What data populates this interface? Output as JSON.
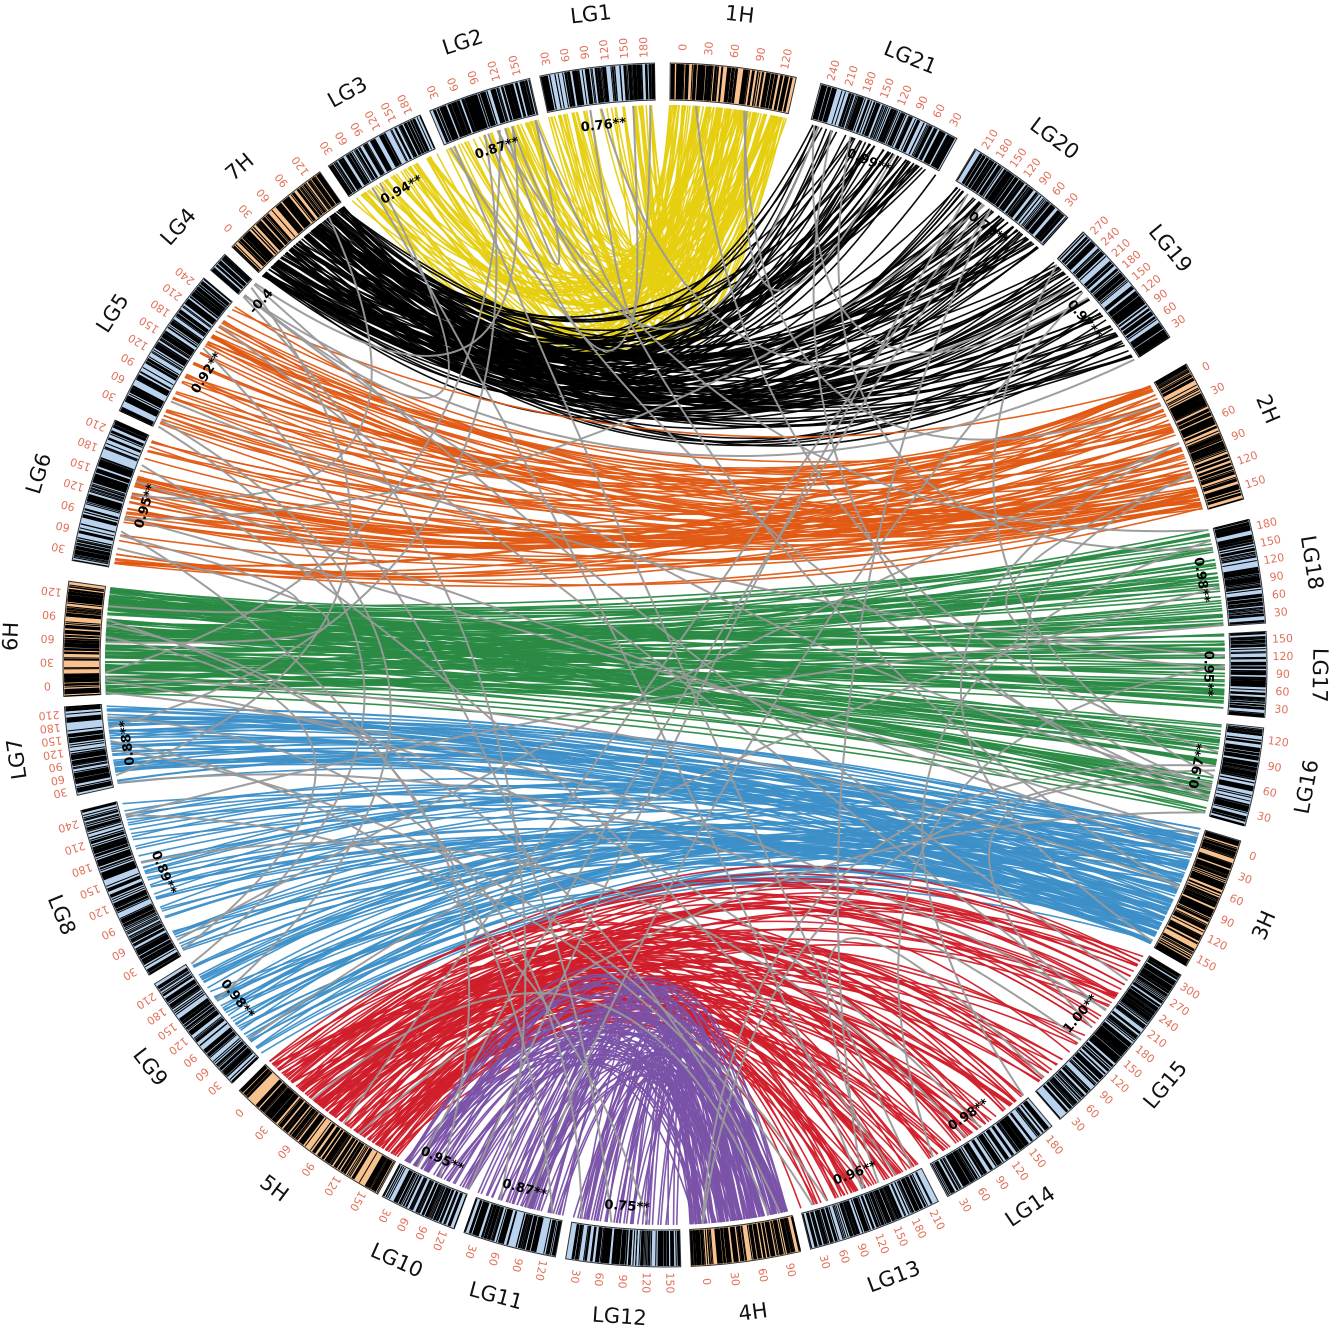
{
  "segments": [
    {
      "label": "1H",
      "ticks": [
        0,
        30,
        60,
        90,
        120
      ]
    },
    {
      "label": "LG21",
      "ticks": [
        240,
        210,
        180,
        150,
        120,
        90,
        60,
        30
      ],
      "r": "0.99**"
    },
    {
      "label": "LG20",
      "ticks": [
        210,
        180,
        150,
        120,
        90,
        60,
        30
      ],
      "r": "0.79**"
    },
    {
      "label": "LG19",
      "ticks": [
        270,
        240,
        210,
        180,
        150,
        120,
        90,
        60,
        30
      ],
      "r": "0.97**"
    },
    {
      "label": "2H",
      "ticks": [
        0,
        30,
        60,
        90,
        120,
        150
      ]
    },
    {
      "label": "LG18",
      "ticks": [
        180,
        150,
        120,
        90,
        60,
        30
      ],
      "r": "0.98**"
    },
    {
      "label": "LG17",
      "ticks": [
        150,
        120,
        90,
        60,
        30
      ],
      "r": "0.95**"
    },
    {
      "label": "LG16",
      "ticks": [
        120,
        90,
        60,
        30
      ],
      "r": "0.97**"
    },
    {
      "label": "3H",
      "ticks": [
        0,
        30,
        60,
        90,
        120,
        150
      ]
    },
    {
      "label": "LG15",
      "ticks": [
        300,
        270,
        240,
        210,
        180,
        150,
        120,
        90,
        60,
        30
      ],
      "r": "1.00**"
    },
    {
      "label": "LG14",
      "ticks": [
        180,
        150,
        120,
        90,
        60,
        30
      ],
      "r": "0.98**"
    },
    {
      "label": "LG13",
      "ticks": [
        210,
        180,
        150,
        120,
        90,
        60,
        30
      ],
      "r": "0.96**"
    },
    {
      "label": "4H",
      "ticks": [
        90,
        60,
        30,
        0
      ]
    },
    {
      "label": "LG12",
      "ticks": [
        150,
        120,
        90,
        60,
        30
      ],
      "r": "0.75**"
    },
    {
      "label": "LG11",
      "ticks": [
        120,
        90,
        60,
        30
      ],
      "r": "0.87**"
    },
    {
      "label": "LG10",
      "ticks": [
        120,
        90,
        60,
        30
      ],
      "r": "0.95**"
    },
    {
      "label": "5H",
      "ticks": [
        150,
        120,
        90,
        60,
        30,
        0
      ]
    },
    {
      "label": "LG9",
      "ticks": [
        30,
        60,
        90,
        120,
        150,
        180,
        210
      ],
      "r": "0.98**"
    },
    {
      "label": "LG8",
      "ticks": [
        30,
        60,
        90,
        120,
        150,
        180,
        210,
        240
      ],
      "r": "0.89**"
    },
    {
      "label": "LG7",
      "ticks": [
        30,
        60,
        90,
        120,
        150,
        180,
        210
      ],
      "r": "0.88**"
    },
    {
      "label": "6H",
      "ticks": [
        0,
        30,
        60,
        90,
        120
      ]
    },
    {
      "label": "LG6",
      "ticks": [
        30,
        60,
        90,
        120,
        150,
        180,
        210
      ],
      "r": "0.95**"
    },
    {
      "label": "LG5",
      "ticks": [
        30,
        60,
        90,
        120,
        150,
        180,
        210,
        240
      ],
      "r": "0.92**"
    },
    {
      "label": "LG4",
      "ticks": [],
      "r": "-0.4"
    },
    {
      "label": "7H",
      "ticks": [
        0,
        30,
        60,
        90,
        120
      ]
    },
    {
      "label": "LG3",
      "ticks": [
        30,
        60,
        90,
        120,
        150,
        180
      ],
      "r": "0.94**"
    },
    {
      "label": "LG2",
      "ticks": [
        30,
        60,
        90,
        120,
        150
      ],
      "r": "0.87**"
    },
    {
      "label": "LG1",
      "ticks": [
        30,
        60,
        90,
        120,
        150,
        180
      ],
      "r": "0.76**"
    }
  ]
}
